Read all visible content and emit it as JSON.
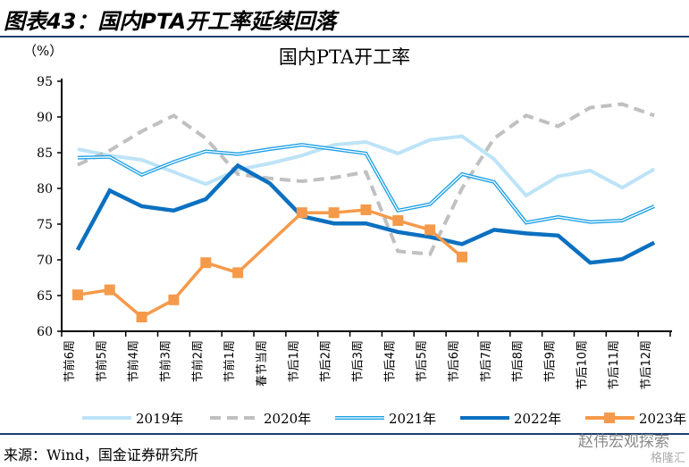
{
  "header": {
    "title": "图表43：国内PTA开工率延续回落"
  },
  "footer": {
    "source": "来源：Wind，国金证券研究所",
    "watermark": "赵伟宏观探索",
    "watermark2": "格隆汇"
  },
  "chart_data": {
    "type": "line",
    "title": "国内PTA开工率",
    "ylabel": "（%）",
    "ylim": [
      60,
      95
    ],
    "yticks": [
      60,
      65,
      70,
      75,
      80,
      85,
      90,
      95
    ],
    "categories": [
      "节前6周",
      "节前5周",
      "节前4周",
      "节前3周",
      "节前2周",
      "节前1周",
      "春节当周",
      "节后1周",
      "节后2周",
      "节后3周",
      "节后4周",
      "节后5周",
      "节后6周",
      "节后7周",
      "节后8周",
      "节后9周",
      "节后10周",
      "节后11周",
      "节后12周"
    ],
    "legend_position": "bottom",
    "series": [
      {
        "name": "2019年",
        "color": "#bde3f7",
        "style": "solid",
        "values": [
          85.5,
          84.6,
          84.0,
          82.3,
          80.6,
          82.6,
          83.5,
          84.6,
          86.1,
          86.5,
          84.9,
          86.8,
          87.3,
          84.1,
          79.0,
          81.7,
          82.5,
          80.1,
          82.7
        ]
      },
      {
        "name": "2020年",
        "color": "#c0c0c0",
        "style": "dashed",
        "values": [
          83.3,
          85.3,
          88.0,
          90.2,
          87.0,
          82.0,
          81.4,
          81.0,
          81.5,
          82.3,
          71.2,
          70.8,
          80.0,
          87.0,
          90.2,
          88.7,
          91.3,
          91.8,
          90.2
        ]
      },
      {
        "name": "2021年",
        "color": "#1ea0e6",
        "style": "double",
        "values": [
          84.3,
          84.4,
          81.9,
          83.7,
          85.2,
          84.8,
          85.5,
          86.1,
          85.5,
          84.9,
          76.9,
          77.8,
          82.0,
          80.9,
          75.2,
          76.0,
          75.3,
          75.5,
          77.5
        ]
      },
      {
        "name": "2022年",
        "color": "#0c70c0",
        "style": "thick",
        "values": [
          71.4,
          79.7,
          77.5,
          76.9,
          78.5,
          83.2,
          80.7,
          76.1,
          75.1,
          75.1,
          73.9,
          73.2,
          72.2,
          74.2,
          73.7,
          73.4,
          69.6,
          70.1,
          72.4
        ]
      },
      {
        "name": "2023年",
        "color": "#f59a4a",
        "style": "marker",
        "values": [
          65.1,
          65.8,
          62.0,
          64.4,
          69.6,
          68.2,
          null,
          76.6,
          76.6,
          77.0,
          75.5,
          74.2,
          70.4,
          null,
          null,
          null,
          null,
          null,
          null
        ]
      }
    ]
  }
}
